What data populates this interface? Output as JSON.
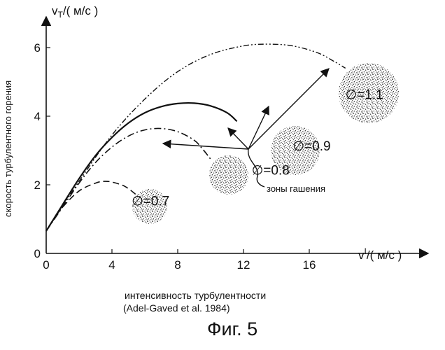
{
  "chart_data": {
    "type": "line",
    "title": "",
    "xlabel": "v'/( м/с )",
    "ylabel": "v_T/( м/с )",
    "ylabel_side": "скорость турбулентного горения",
    "xlabel_below": "интенсивность турбулентности",
    "source": "(Adel-Gaved et al. 1984)",
    "caption": "Фиг. 5",
    "x_ticks": [
      "0",
      "4",
      "8",
      "12",
      "16"
    ],
    "y_ticks": [
      "0",
      "2",
      "4",
      "6"
    ],
    "xlim": [
      0,
      20.5
    ],
    "ylim": [
      0,
      7
    ],
    "grid": false,
    "series": [
      {
        "name": "∅=0.7",
        "style": "dash",
        "x": [
          0,
          0.5,
          1,
          2,
          3,
          3.5,
          4,
          4.8,
          5.5
        ],
        "y": [
          0.65,
          1.02,
          1.35,
          1.82,
          2.05,
          2.1,
          2.08,
          1.95,
          1.7
        ]
      },
      {
        "name": "∅=0.8",
        "style": "dash-dot",
        "x": [
          0,
          1,
          2,
          3,
          4,
          5,
          6,
          7,
          8,
          9,
          9.5,
          10
        ],
        "y": [
          0.65,
          1.35,
          2.05,
          2.65,
          3.1,
          3.42,
          3.6,
          3.64,
          3.55,
          3.3,
          3.05,
          2.75
        ]
      },
      {
        "name": "∅=0.9",
        "style": "solid",
        "x": [
          0,
          1,
          2,
          3,
          4,
          5,
          6,
          7,
          8,
          9,
          10,
          11,
          11.6
        ],
        "y": [
          0.65,
          1.42,
          2.18,
          2.85,
          3.38,
          3.8,
          4.1,
          4.28,
          4.37,
          4.38,
          4.3,
          4.1,
          3.85
        ]
      },
      {
        "name": "∅=1.1",
        "style": "dash-dot-dot",
        "x": [
          0,
          2,
          4,
          6,
          8,
          10,
          12,
          13.5,
          15,
          16.5,
          17.5,
          18.2
        ],
        "y": [
          0.65,
          2.1,
          3.45,
          4.5,
          5.3,
          5.8,
          6.05,
          6.1,
          6.05,
          5.85,
          5.6,
          5.4
        ]
      }
    ],
    "annotations": {
      "quench_label": "зоны гашения",
      "phi_labels": [
        {
          "text": "∅=0.7",
          "x": 5.2,
          "y": 1.4
        },
        {
          "text": "∅=0.8",
          "x": 12.5,
          "y": 2.3
        },
        {
          "text": "∅=0.9",
          "x": 15.0,
          "y": 3.0
        },
        {
          "text": "∅=1.1",
          "x": 18.2,
          "y": 4.5
        }
      ]
    }
  },
  "colors": {
    "ink": "#111111",
    "background": "#ffffff"
  }
}
